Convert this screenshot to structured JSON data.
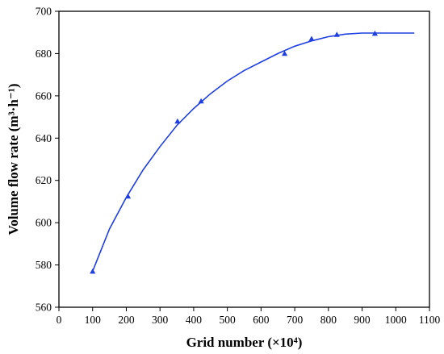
{
  "chart_data": {
    "type": "line",
    "title": "",
    "xlabel": "Grid number (×10⁴)",
    "ylabel": "Volume flow rate (m³·h⁻¹)",
    "xlim": [
      0,
      1100
    ],
    "ylim": [
      560,
      700
    ],
    "x_ticks": [
      0,
      100,
      200,
      300,
      400,
      500,
      600,
      700,
      800,
      900,
      1000,
      1100
    ],
    "y_ticks": [
      560,
      580,
      600,
      620,
      640,
      660,
      680,
      700
    ],
    "grid": false,
    "legend": "none",
    "series": [
      {
        "marker": "triangle",
        "color": "#1f3fe0",
        "points": [
          {
            "x": 100,
            "y": 577
          },
          {
            "x": 205,
            "y": 612.5
          },
          {
            "x": 352,
            "y": 648
          },
          {
            "x": 422,
            "y": 657.5
          },
          {
            "x": 670,
            "y": 680
          },
          {
            "x": 750,
            "y": 687
          },
          {
            "x": 825,
            "y": 689
          },
          {
            "x": 938,
            "y": 689.5
          }
        ],
        "fit_curve": [
          [
            100,
            577
          ],
          [
            150,
            597
          ],
          [
            200,
            612
          ],
          [
            250,
            625
          ],
          [
            300,
            636
          ],
          [
            350,
            646
          ],
          [
            400,
            654
          ],
          [
            450,
            661
          ],
          [
            500,
            667
          ],
          [
            550,
            672
          ],
          [
            600,
            676
          ],
          [
            650,
            680
          ],
          [
            700,
            683.5
          ],
          [
            750,
            686
          ],
          [
            800,
            688
          ],
          [
            850,
            689.2
          ],
          [
            900,
            689.7
          ],
          [
            950,
            689.7
          ],
          [
            1000,
            689.7
          ],
          [
            1055,
            689.7
          ]
        ]
      }
    ]
  }
}
